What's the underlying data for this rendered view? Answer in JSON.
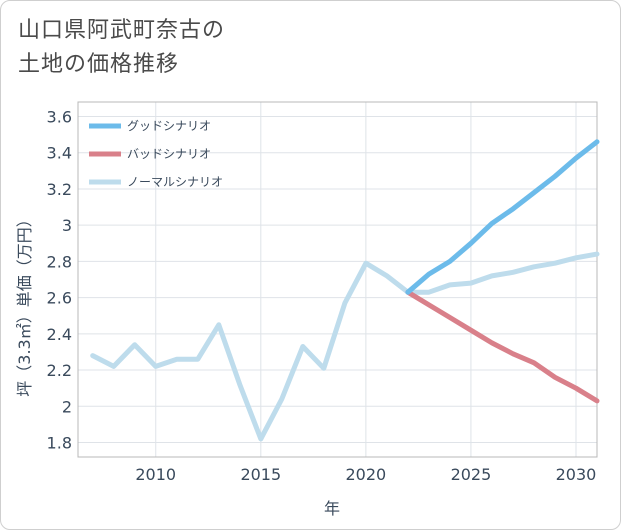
{
  "title_lines": [
    "山口県阿武町奈古の",
    "土地の価格推移"
  ],
  "chart_data": {
    "type": "line",
    "title": "山口県阿武町奈古の土地の価格推移",
    "xlabel": "年",
    "ylabel": "坪（3.3㎡）単価（万円）",
    "xlim": [
      2006.3,
      2031
    ],
    "ylim": [
      1.72,
      3.68
    ],
    "x_ticks": [
      2010,
      2015,
      2020,
      2025,
      2030
    ],
    "y_ticks": [
      1.8,
      2,
      2.2,
      2.4,
      2.6,
      2.8,
      3,
      3.2,
      3.4,
      3.6
    ],
    "y_tick_labels": [
      "1.8",
      "2",
      "2.2",
      "2.4",
      "2.6",
      "2.8",
      "3",
      "3.2",
      "3.4",
      "3.6"
    ],
    "grid": true,
    "legend_position": "top-left",
    "series": [
      {
        "name": "グッドシナリオ",
        "color": "#6cbbea",
        "x": [
          2022,
          2023,
          2024,
          2025,
          2026,
          2027,
          2028,
          2029,
          2030,
          2031
        ],
        "values": [
          2.63,
          2.73,
          2.8,
          2.9,
          3.01,
          3.09,
          3.18,
          3.27,
          3.37,
          3.46
        ]
      },
      {
        "name": "バッドシナリオ",
        "color": "#d9808a",
        "x": [
          2022,
          2023,
          2024,
          2025,
          2026,
          2027,
          2028,
          2029,
          2030,
          2031
        ],
        "values": [
          2.63,
          2.56,
          2.49,
          2.42,
          2.35,
          2.29,
          2.24,
          2.16,
          2.1,
          2.03
        ]
      },
      {
        "name": "ノーマルシナリオ",
        "color": "#bedcec",
        "x": [
          2007,
          2008,
          2009,
          2010,
          2011,
          2012,
          2013,
          2014,
          2015,
          2016,
          2017,
          2018,
          2019,
          2020,
          2021,
          2022,
          2023,
          2024,
          2025,
          2026,
          2027,
          2028,
          2029,
          2030,
          2031
        ],
        "values": [
          2.28,
          2.22,
          2.34,
          2.22,
          2.26,
          2.26,
          2.45,
          2.12,
          1.82,
          2.04,
          2.33,
          2.21,
          2.57,
          2.79,
          2.72,
          2.63,
          2.63,
          2.67,
          2.68,
          2.72,
          2.74,
          2.77,
          2.79,
          2.82,
          2.84
        ]
      }
    ]
  }
}
